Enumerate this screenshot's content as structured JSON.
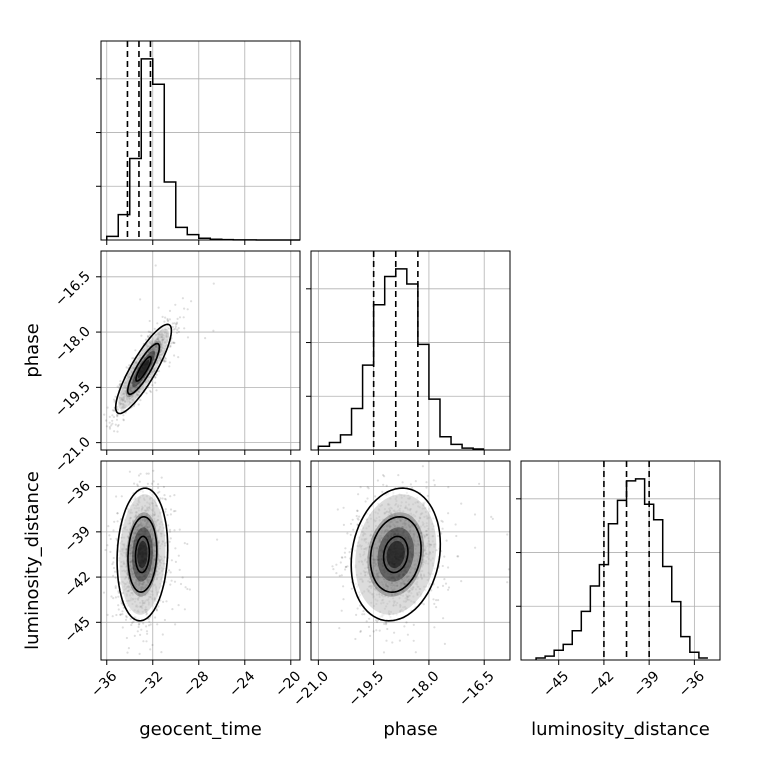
{
  "chart_data": {
    "type": "corner",
    "parameters": [
      {
        "name": "geocent_time",
        "label": "geocent_time",
        "ticks": [
          -36,
          -32,
          -28,
          -24,
          -20
        ],
        "tick_labels": [
          "−36",
          "−32",
          "−28",
          "−24",
          "−20"
        ],
        "range": [
          -36.5,
          -19.2
        ]
      },
      {
        "name": "phase",
        "label": "phase",
        "ticks": [
          -21.0,
          -19.5,
          -18.0,
          -16.5
        ],
        "tick_labels": [
          "−21.0",
          "−19.5",
          "−18.0",
          "−16.5"
        ],
        "range": [
          -21.2,
          -15.8
        ]
      },
      {
        "name": "luminosity_distance",
        "label": "luminosity_distance",
        "ticks": [
          -45,
          -42,
          -39,
          -36
        ],
        "tick_labels": [
          "−45",
          "−42",
          "−39",
          "−36"
        ],
        "range": [
          -47.5,
          -34.3
        ]
      }
    ],
    "marginals": [
      {
        "parameter": "geocent_time",
        "bin_edges": [
          -36.0,
          -35.0,
          -34.0,
          -33.0,
          -32.0,
          -31.0,
          -30.0,
          -29.0,
          -28.0,
          -27.0,
          -26.0,
          -25.0,
          -24.0,
          -23.0,
          -22.0,
          -21.0,
          -20.0,
          -19.2
        ],
        "counts": [
          0.02,
          0.14,
          0.45,
          1.0,
          0.86,
          0.32,
          0.07,
          0.03,
          0.01,
          0.004,
          0.002,
          0.001,
          0.001,
          0.0,
          0.0,
          0.0,
          0.0
        ],
        "quantiles": [
          -34.2,
          -33.2,
          -32.2
        ]
      },
      {
        "parameter": "phase",
        "bin_edges": [
          -21.0,
          -20.7,
          -20.4,
          -20.1,
          -19.8,
          -19.5,
          -19.2,
          -18.9,
          -18.6,
          -18.3,
          -18.0,
          -17.7,
          -17.4,
          -17.1,
          -16.8,
          -16.5
        ],
        "counts": [
          0.02,
          0.04,
          0.08,
          0.22,
          0.45,
          0.77,
          0.92,
          0.96,
          0.88,
          0.56,
          0.27,
          0.07,
          0.03,
          0.01,
          0.005
        ],
        "quantiles": [
          -19.5,
          -18.9,
          -18.3
        ]
      },
      {
        "parameter": "luminosity_distance",
        "bin_edges": [
          -46.5,
          -45.9,
          -45.3,
          -44.7,
          -44.1,
          -43.5,
          -42.9,
          -42.3,
          -41.7,
          -41.1,
          -40.5,
          -39.9,
          -39.3,
          -38.7,
          -38.1,
          -37.5,
          -36.9,
          -36.3,
          -35.7,
          -35.1
        ],
        "counts": [
          0.01,
          0.02,
          0.05,
          0.08,
          0.15,
          0.25,
          0.38,
          0.49,
          0.7,
          0.82,
          0.92,
          0.93,
          0.8,
          0.72,
          0.48,
          0.3,
          0.12,
          0.04,
          0.01
        ],
        "quantiles": [
          -42.0,
          -40.5,
          -39.0
        ]
      }
    ],
    "joint": [
      {
        "x": "geocent_time",
        "y": "phase",
        "center": [
          -32.8,
          -19.0
        ],
        "corr": 0.86,
        "sd": [
          1.1,
          0.55
        ]
      },
      {
        "x": "geocent_time",
        "y": "luminosity_distance",
        "center": [
          -32.9,
          -40.5
        ],
        "corr": 0.1,
        "sd": [
          1.0,
          2.0
        ]
      },
      {
        "x": "phase",
        "y": "luminosity_distance",
        "center": [
          -18.9,
          -40.5
        ],
        "corr": 0.15,
        "sd": [
          0.55,
          2.0
        ]
      }
    ],
    "grid": true
  }
}
